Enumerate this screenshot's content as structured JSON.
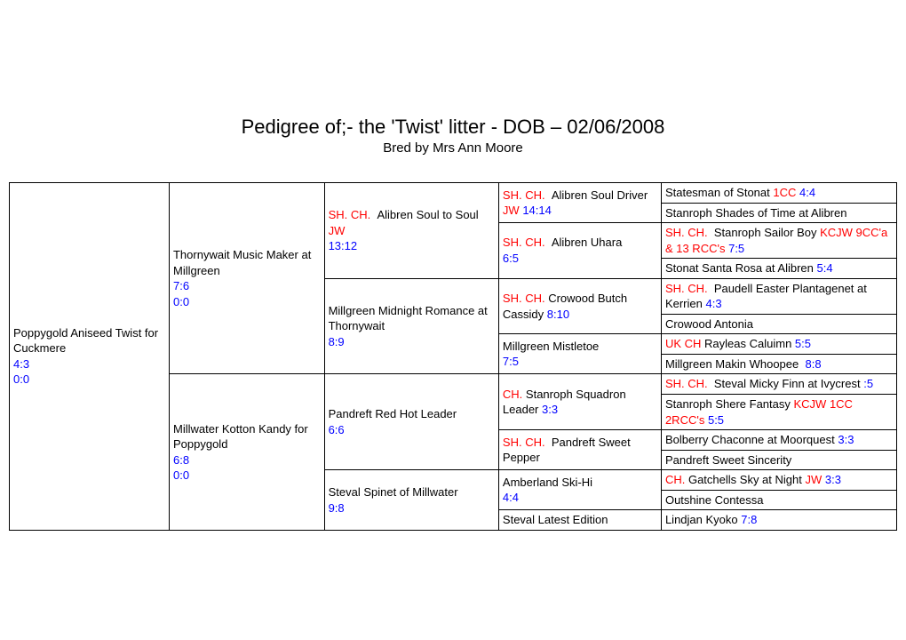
{
  "header": {
    "title": "Pedigree of;- the 'Twist' litter - DOB – 02/06/2008",
    "subtitle": "Bred by Mrs Ann Moore"
  },
  "ped": {
    "gen1": {
      "name": "Poppygold Aniseed Twist for Cuckmere",
      "h1": "4:3",
      "h2": "0:0"
    },
    "gen2": [
      {
        "name": "Thornywait Music Maker at Millgreen",
        "h1": "7:6",
        "h2": "0:0"
      },
      {
        "name": "Millwater Kotton Kandy for Poppygold",
        "h1": "6:8",
        "h2": "0:0"
      }
    ],
    "gen3": [
      {
        "prefix": "SH. CH.",
        "name": "Alibren Soul to Soul",
        "suffix": "JW",
        "h1": "13:12"
      },
      {
        "name": "Millgreen Midnight Romance at Thornywait",
        "h1": "8:9"
      },
      {
        "name": "Pandreft Red Hot Leader",
        "h1": "6:6"
      },
      {
        "name": "Steval Spinet of Millwater",
        "h1": "9:8"
      }
    ],
    "gen4": [
      {
        "prefix": "SH. CH.",
        "name": "Alibren Soul Driver",
        "suffix": "JW",
        "h1": "14:14"
      },
      {
        "prefix": "SH. CH.",
        "name": "Alibren Uhara",
        "h1": "6:5"
      },
      {
        "prefix": "SH. CH.",
        "name": "Crowood Butch Cassidy",
        "h1": "8:10"
      },
      {
        "name": "Millgreen Mistletoe",
        "h1": "7:5"
      },
      {
        "prefix": "CH.",
        "name": "Stanroph Squadron Leader",
        "h1": "3:3"
      },
      {
        "prefix": "SH. CH.",
        "name": "Pandreft Sweet Pepper"
      },
      {
        "name": "Amberland Ski-Hi",
        "h1": "4:4"
      },
      {
        "name": "Steval Latest Edition"
      }
    ],
    "gen5": [
      {
        "name": "Statesman of Stonat",
        "suffix": "1CC",
        "h1": "4:4"
      },
      {
        "name": "Stanroph Shades of Time at Alibren"
      },
      {
        "prefix": "SH. CH.",
        "name": "Stanroph Sailor Boy",
        "suffix": "KCJW 9CC'a & 13 RCC's",
        "h1": "7:5"
      },
      {
        "name": "Stonat Santa Rosa at Alibren",
        "h1": "5:4"
      },
      {
        "prefix": "SH. CH.",
        "name": "Paudell Easter Plantagenet at Kerrien",
        "h1": "4:3"
      },
      {
        "name": "Crowood Antonia"
      },
      {
        "prefix": "UK CH",
        "name": "Rayleas Caluimn",
        "h1": "5:5"
      },
      {
        "name": "Millgreen Makin Whoopee",
        "h1": "8:8"
      },
      {
        "prefix": "SH. CH.",
        "name": "Steval Micky Finn at Ivycrest",
        "h1": ":5"
      },
      {
        "name": "Stanroph Shere Fantasy",
        "suffix": "KCJW 1CC 2RCC's",
        "h1": "5:5"
      },
      {
        "name": "Bolberry Chaconne at Moorquest",
        "h1": "3:3"
      },
      {
        "name": "Pandreft Sweet Sincerity"
      },
      {
        "prefix": "CH.",
        "name": "Gatchells Sky at Night",
        "suffix": "JW",
        "h1": "3:3"
      },
      {
        "name": "Outshine Contessa"
      },
      {
        "name": "Lindjan Kyoko",
        "h1": "7:8"
      }
    ]
  },
  "colors": {
    "red": "#ff0000",
    "blue": "#0000ff"
  }
}
